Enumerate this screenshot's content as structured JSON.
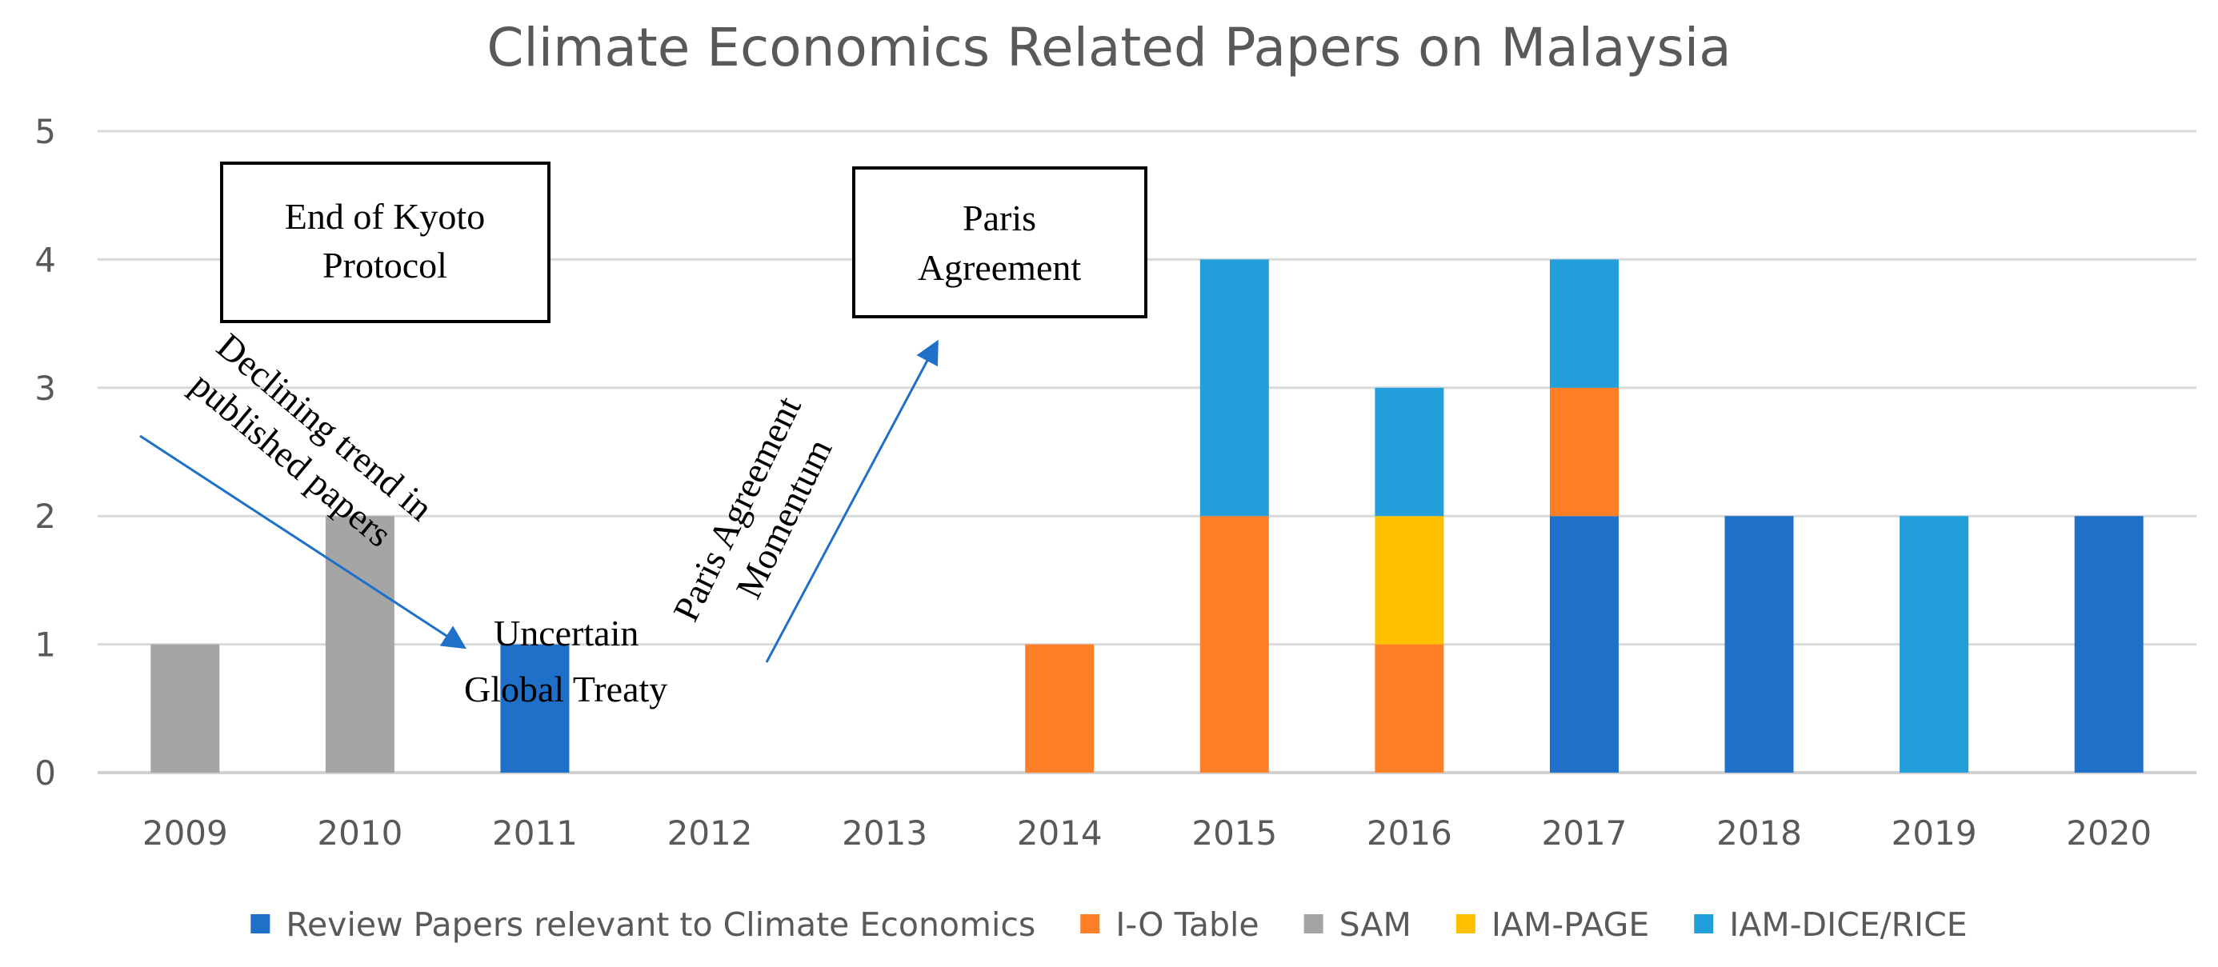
{
  "chart_data": {
    "type": "bar",
    "stacked": true,
    "title": "Climate Economics Related Papers on Malaysia",
    "xlabel": "",
    "ylabel": "",
    "ylim": [
      0,
      5
    ],
    "yticks": [
      0,
      1,
      2,
      3,
      4,
      5
    ],
    "grid": true,
    "legend_position": "bottom",
    "categories": [
      "2009",
      "2010",
      "2011",
      "2012",
      "2013",
      "2014",
      "2015",
      "2016",
      "2017",
      "2018",
      "2019",
      "2020"
    ],
    "series": [
      {
        "name": "Review Papers relevant to Climate Economics",
        "color": "#1F70C8",
        "values": [
          0,
          0,
          1,
          0,
          0,
          0,
          0,
          0,
          2,
          2,
          0,
          2
        ]
      },
      {
        "name": "I-O Table",
        "color": "#FF7F27",
        "values": [
          0,
          0,
          0,
          0,
          0,
          1,
          2,
          1,
          1,
          0,
          0,
          0
        ]
      },
      {
        "name": "SAM",
        "color": "#A5A5A5",
        "values": [
          1,
          2,
          0,
          0,
          0,
          0,
          0,
          0,
          0,
          0,
          0,
          0
        ]
      },
      {
        "name": "IAM-PAGE",
        "color": "#FFC000",
        "values": [
          0,
          0,
          0,
          0,
          0,
          0,
          0,
          1,
          0,
          0,
          0,
          0
        ]
      },
      {
        "name": "IAM-DICE/RICE",
        "color": "#229FDB",
        "values": [
          0,
          0,
          0,
          0,
          0,
          0,
          2,
          1,
          1,
          0,
          2,
          0
        ]
      }
    ],
    "annotations": {
      "kyoto_box": [
        "End of Kyoto",
        "Protocol"
      ],
      "paris_box": [
        "Paris",
        "Agreement"
      ],
      "declining": [
        "Declining trend in",
        "published papers"
      ],
      "uncertain": [
        "Uncertain",
        "Global Treaty"
      ],
      "momentum": [
        "Paris Agreement",
        "Momentum"
      ]
    },
    "arrow_color": "#1F70C8"
  }
}
